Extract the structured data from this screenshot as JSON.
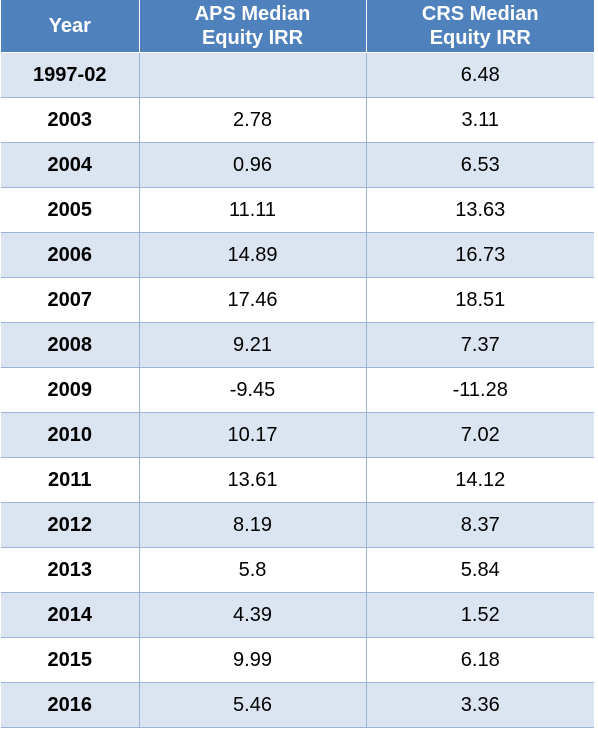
{
  "colors": {
    "header_bg": "#4f81bd",
    "header_text": "#ffffff",
    "stripe_bg": "#dbe5f1",
    "grid_line": "#9bb3d9"
  },
  "header": {
    "year": "Year",
    "aps_line1": "APS Median",
    "aps_line2": "Equity IRR",
    "crs_line1": "CRS Median",
    "crs_line2": "Equity IRR"
  },
  "rows": [
    {
      "year": "1997-02",
      "aps": "",
      "crs": "6.48"
    },
    {
      "year": "2003",
      "aps": "2.78",
      "crs": "3.11"
    },
    {
      "year": "2004",
      "aps": "0.96",
      "crs": "6.53"
    },
    {
      "year": "2005",
      "aps": "11.11",
      "crs": "13.63"
    },
    {
      "year": "2006",
      "aps": "14.89",
      "crs": "16.73"
    },
    {
      "year": "2007",
      "aps": "17.46",
      "crs": "18.51"
    },
    {
      "year": "2008",
      "aps": "9.21",
      "crs": "7.37"
    },
    {
      "year": "2009",
      "aps": "-9.45",
      "crs": "-11.28"
    },
    {
      "year": "2010",
      "aps": "10.17",
      "crs": "7.02"
    },
    {
      "year": "2011",
      "aps": "13.61",
      "crs": "14.12"
    },
    {
      "year": "2012",
      "aps": "8.19",
      "crs": "8.37"
    },
    {
      "year": "2013",
      "aps": "5.8",
      "crs": "5.84"
    },
    {
      "year": "2014",
      "aps": "4.39",
      "crs": "1.52"
    },
    {
      "year": "2015",
      "aps": "9.99",
      "crs": "6.18"
    },
    {
      "year": "2016",
      "aps": "5.46",
      "crs": "3.36"
    }
  ]
}
